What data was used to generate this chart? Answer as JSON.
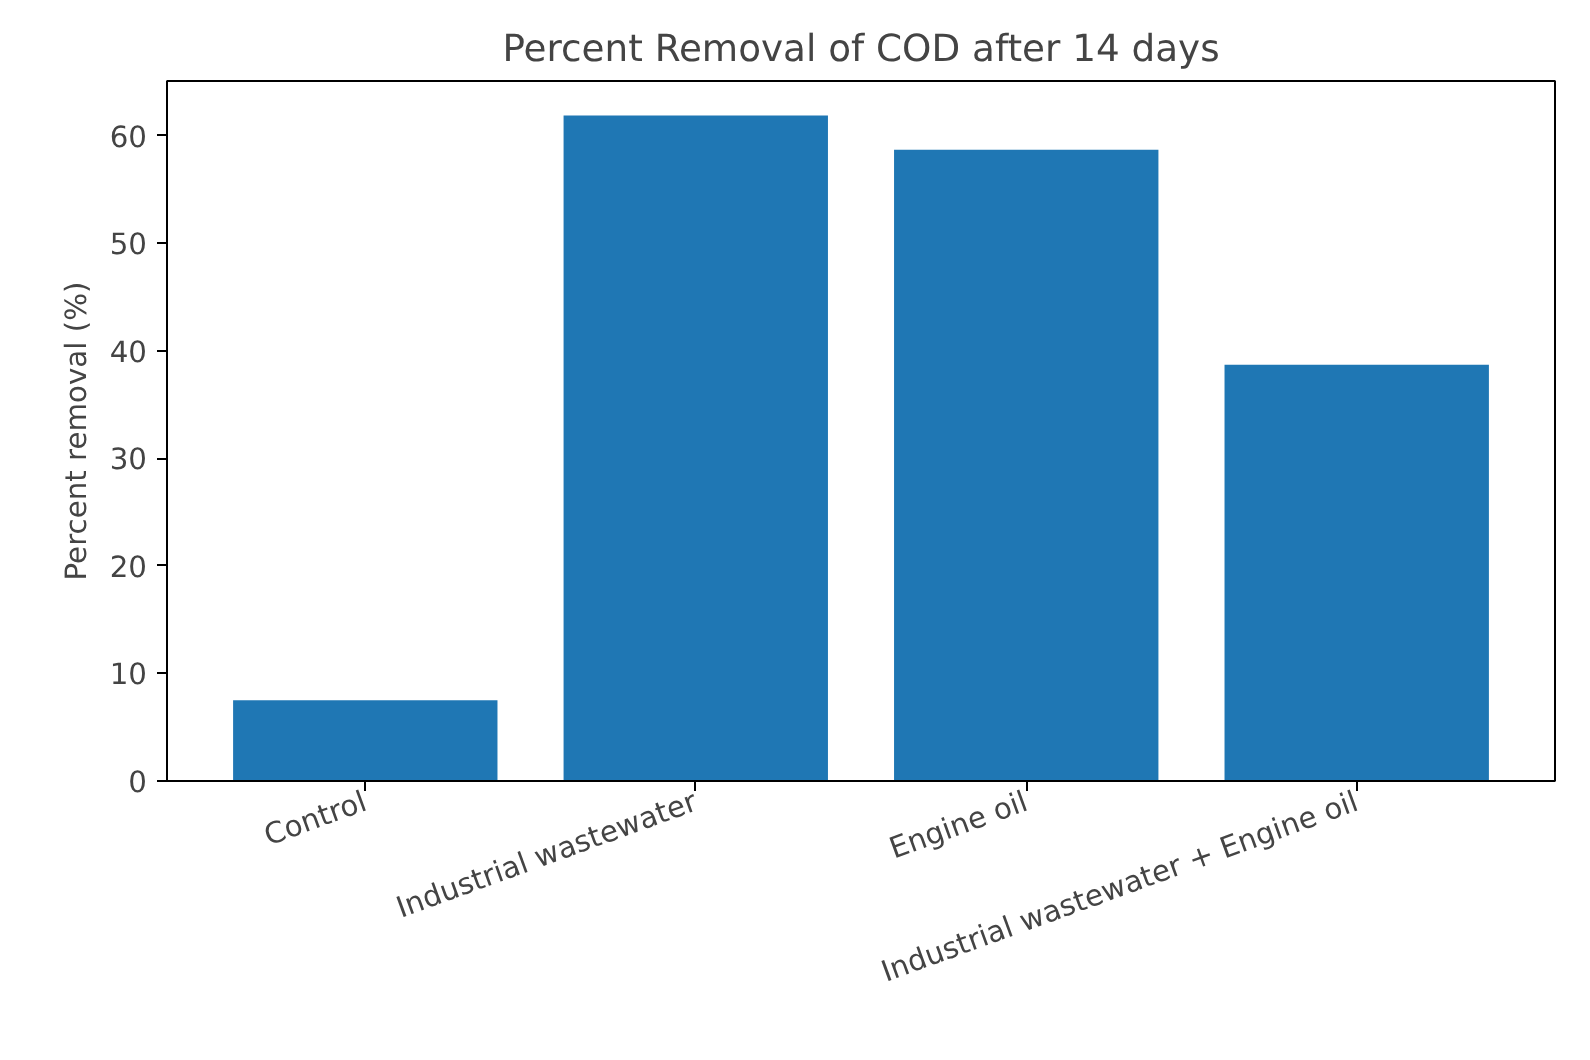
{
  "chart_data": {
    "type": "bar",
    "title": "Percent Removal of COD after 14 days",
    "ylabel": "Percent removal (%)",
    "categories": [
      "Control",
      "Industrial wastewater",
      "Engine oil",
      "Industrial wastewater + Engine oil"
    ],
    "values": [
      7.5,
      61.9,
      58.7,
      38.7
    ],
    "color": "#1f77b4",
    "ylim": [
      0,
      65.1
    ],
    "yticks": [
      0,
      10,
      20,
      30,
      40,
      50,
      60
    ],
    "grid": false
  }
}
